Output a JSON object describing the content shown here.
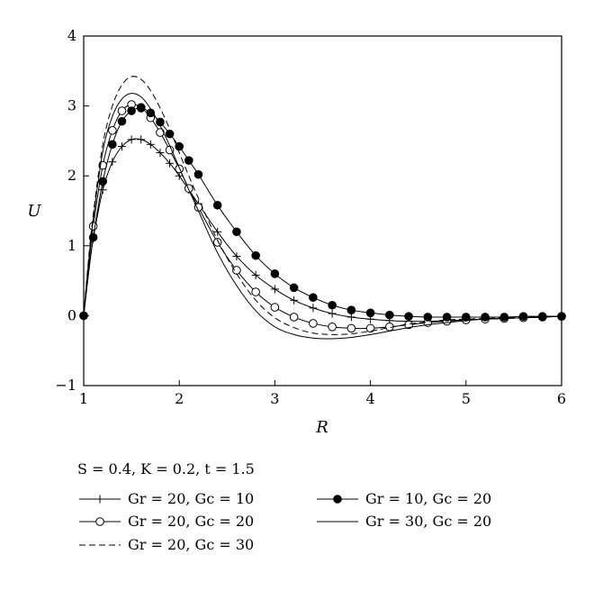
{
  "chart_data": {
    "type": "line",
    "title": "",
    "xlabel": "R",
    "ylabel": "U",
    "xlim": [
      1,
      6
    ],
    "ylim": [
      -1,
      4
    ],
    "x_ticks": [
      "1",
      "2",
      "3",
      "4",
      "5",
      "6"
    ],
    "y_ticks": [
      "−1",
      "0",
      "1",
      "2",
      "3",
      "4"
    ],
    "x_tick_values": [
      1,
      2,
      3,
      4,
      5,
      6
    ],
    "y_tick_values": [
      -1,
      0,
      1,
      2,
      3,
      4
    ],
    "grid": false,
    "legend_placement": "bottom",
    "legend_title": "S = 0.4, K = 0.2, t = 1.5",
    "series": [
      {
        "name": "Gr = 20, Gc = 10",
        "marker": "plus",
        "line_style": "solid",
        "color": "#000000",
        "x": [
          1.0,
          1.05,
          1.1,
          1.2,
          1.3,
          1.4,
          1.5,
          1.6,
          1.7,
          1.8,
          1.9,
          2.0,
          2.1,
          2.2,
          2.4,
          2.6,
          2.8,
          3.0,
          3.2,
          3.4,
          3.6,
          3.8,
          4.0,
          4.2,
          4.4,
          4.6,
          4.8,
          5.0,
          5.2,
          5.4,
          5.6,
          5.8,
          6.0
        ],
        "y": [
          0.0,
          0.6,
          1.1,
          1.8,
          2.2,
          2.42,
          2.52,
          2.52,
          2.45,
          2.33,
          2.18,
          2.0,
          1.8,
          1.6,
          1.2,
          0.85,
          0.58,
          0.38,
          0.22,
          0.11,
          0.03,
          -0.02,
          -0.05,
          -0.07,
          -0.08,
          -0.08,
          -0.07,
          -0.06,
          -0.05,
          -0.04,
          -0.03,
          -0.02,
          -0.01
        ]
      },
      {
        "name": "Gr = 20, Gc = 20",
        "marker": "open-circle",
        "line_style": "solid",
        "color": "#000000",
        "x": [
          1.0,
          1.05,
          1.1,
          1.2,
          1.3,
          1.4,
          1.5,
          1.6,
          1.7,
          1.8,
          1.9,
          2.0,
          2.1,
          2.2,
          2.4,
          2.6,
          2.8,
          3.0,
          3.2,
          3.4,
          3.6,
          3.8,
          4.0,
          4.2,
          4.4,
          4.6,
          4.8,
          5.0,
          5.2,
          5.4,
          5.6,
          5.8,
          6.0
        ],
        "y": [
          0.0,
          0.7,
          1.28,
          2.15,
          2.65,
          2.93,
          3.02,
          2.98,
          2.83,
          2.62,
          2.37,
          2.1,
          1.82,
          1.55,
          1.05,
          0.65,
          0.34,
          0.12,
          -0.02,
          -0.11,
          -0.16,
          -0.18,
          -0.18,
          -0.16,
          -0.13,
          -0.1,
          -0.08,
          -0.06,
          -0.05,
          -0.04,
          -0.03,
          -0.02,
          -0.01
        ]
      },
      {
        "name": "Gr = 20, Gc = 30",
        "marker": "none",
        "line_style": "dashed",
        "color": "#000000",
        "x": [
          1.0,
          1.05,
          1.1,
          1.2,
          1.3,
          1.4,
          1.5,
          1.6,
          1.7,
          1.8,
          1.9,
          2.0,
          2.1,
          2.2,
          2.4,
          2.6,
          2.8,
          3.0,
          3.2,
          3.4,
          3.6,
          3.8,
          4.0,
          4.2,
          4.4,
          4.6,
          4.8,
          5.0,
          5.2,
          5.4,
          5.6,
          5.8,
          6.0
        ],
        "y": [
          0.0,
          0.8,
          1.45,
          2.45,
          3.0,
          3.3,
          3.42,
          3.38,
          3.22,
          2.97,
          2.67,
          2.33,
          2.0,
          1.68,
          1.08,
          0.6,
          0.22,
          -0.03,
          -0.17,
          -0.25,
          -0.27,
          -0.26,
          -0.22,
          -0.17,
          -0.12,
          -0.09,
          -0.06,
          -0.05,
          -0.04,
          -0.03,
          -0.02,
          -0.01,
          -0.01
        ]
      },
      {
        "name": "Gr = 10, Gc = 20",
        "marker": "filled-circle",
        "line_style": "solid",
        "color": "#000000",
        "x": [
          1.0,
          1.05,
          1.1,
          1.2,
          1.3,
          1.4,
          1.5,
          1.6,
          1.7,
          1.8,
          1.9,
          2.0,
          2.1,
          2.2,
          2.4,
          2.6,
          2.8,
          3.0,
          3.2,
          3.4,
          3.6,
          3.8,
          4.0,
          4.2,
          4.4,
          4.6,
          4.8,
          5.0,
          5.2,
          5.4,
          5.6,
          5.8,
          6.0
        ],
        "y": [
          0.0,
          0.6,
          1.12,
          1.92,
          2.45,
          2.78,
          2.93,
          2.97,
          2.9,
          2.77,
          2.6,
          2.42,
          2.22,
          2.02,
          1.58,
          1.2,
          0.86,
          0.6,
          0.4,
          0.26,
          0.15,
          0.08,
          0.04,
          0.01,
          -0.01,
          -0.02,
          -0.02,
          -0.02,
          -0.02,
          -0.02,
          -0.01,
          -0.01,
          -0.01
        ]
      },
      {
        "name": "Gr = 30, Gc = 20",
        "marker": "none",
        "line_style": "solid",
        "color": "#000000",
        "x": [
          1.0,
          1.05,
          1.1,
          1.2,
          1.3,
          1.4,
          1.5,
          1.6,
          1.7,
          1.8,
          1.9,
          2.0,
          2.1,
          2.2,
          2.4,
          2.6,
          2.8,
          3.0,
          3.2,
          3.4,
          3.6,
          3.8,
          4.0,
          4.2,
          4.4,
          4.6,
          4.8,
          5.0,
          5.2,
          5.4,
          5.6,
          5.8,
          6.0
        ],
        "y": [
          0.0,
          0.75,
          1.38,
          2.35,
          2.85,
          3.1,
          3.18,
          3.13,
          2.96,
          2.72,
          2.43,
          2.12,
          1.8,
          1.5,
          0.9,
          0.43,
          0.07,
          -0.16,
          -0.27,
          -0.32,
          -0.33,
          -0.31,
          -0.27,
          -0.22,
          -0.17,
          -0.13,
          -0.1,
          -0.07,
          -0.05,
          -0.04,
          -0.03,
          -0.02,
          -0.01
        ]
      }
    ]
  }
}
